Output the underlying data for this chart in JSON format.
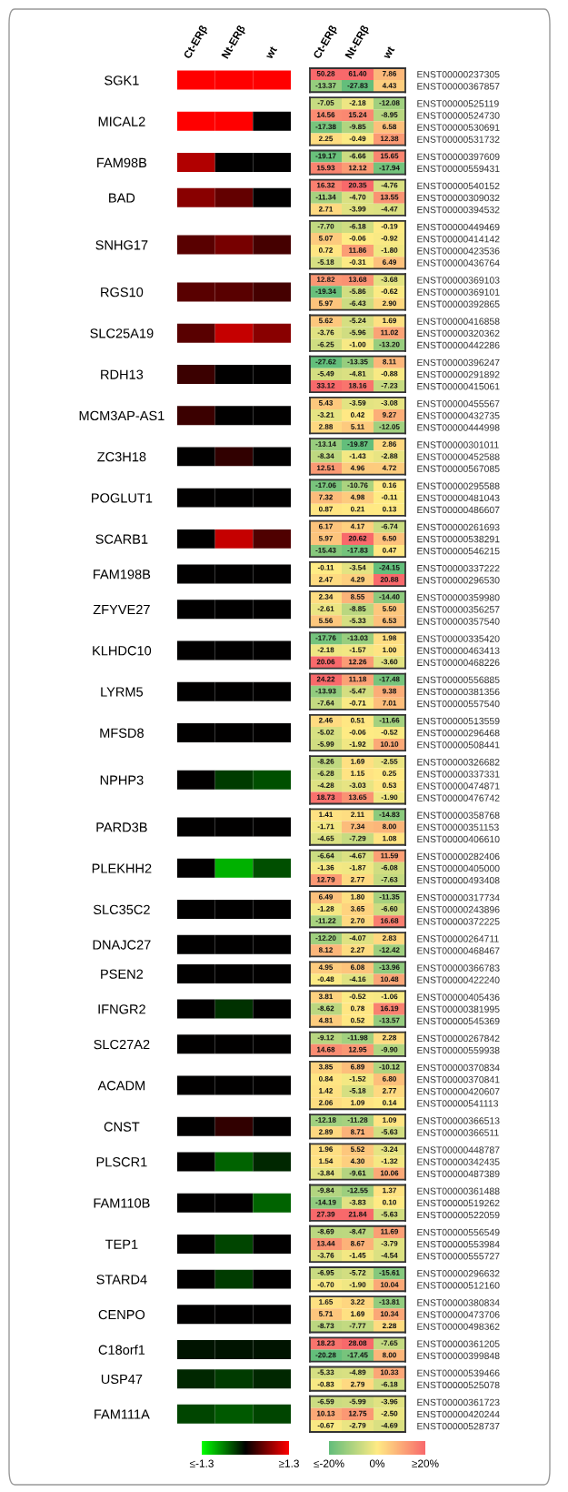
{
  "chart_data": [
    {
      "type": "heatmap",
      "categories": [
        "Ct-ERβ",
        "Nt-ERβ",
        "wt"
      ],
      "y_categories": [
        "SGK1",
        "MICAL2",
        "FAM98B",
        "BAD",
        "SNHG17",
        "RGS10",
        "SLC25A19",
        "RDH13",
        "MCM3AP-AS1",
        "ZC3H18",
        "POGLUT1",
        "SCARB1",
        "FAM198B",
        "ZFYVE27",
        "KLHDC10",
        "LYRM5",
        "MFSD8",
        "NPHP3",
        "PARD3B",
        "PLEKHH2",
        "SLC35C2",
        "DNAJC27",
        "PSEN2",
        "IFNGR2",
        "SLC27A2",
        "ACADM",
        "CNST",
        "PLSCR1",
        "FAM110B",
        "TEP1",
        "STARD4",
        "CENPO",
        "C18orf1",
        "USP47",
        "FAM111A"
      ],
      "cells": [
        [
          1.3,
          1.3,
          1.3
        ],
        [
          1.3,
          1.3,
          0
        ],
        [
          0.9,
          0,
          0
        ],
        [
          0.7,
          0.5,
          0
        ],
        [
          0.45,
          0.6,
          0.35
        ],
        [
          0.45,
          0.45,
          0.35
        ],
        [
          0.45,
          1.0,
          0.7
        ],
        [
          0.3,
          0,
          0
        ],
        [
          0.3,
          0,
          0
        ],
        [
          0,
          0.25,
          0
        ],
        [
          0,
          0,
          0
        ],
        [
          0,
          1.0,
          0.4
        ],
        [
          0,
          0,
          0
        ],
        [
          0,
          0,
          0
        ],
        [
          0,
          0,
          0
        ],
        [
          0,
          0,
          0
        ],
        [
          0,
          0,
          0
        ],
        [
          0,
          -0.3,
          -0.4
        ],
        [
          0,
          0,
          0
        ],
        [
          0,
          -0.9,
          -0.4
        ],
        [
          0,
          0,
          0
        ],
        [
          0,
          0,
          0
        ],
        [
          0,
          0,
          0
        ],
        [
          0,
          -0.25,
          0
        ],
        [
          0,
          0,
          0
        ],
        [
          0,
          0,
          0
        ],
        [
          0,
          0.25,
          0
        ],
        [
          0,
          -0.5,
          -0.2
        ],
        [
          0,
          0,
          -0.5
        ],
        [
          0,
          -0.35,
          0
        ],
        [
          0,
          -0.3,
          0
        ],
        [
          0,
          0,
          0
        ],
        [
          -0.1,
          -0.1,
          -0.1
        ],
        [
          -0.2,
          -0.3,
          -0.2
        ],
        [
          -0.35,
          -0.45,
          -0.35
        ]
      ],
      "colors": [
        "#00ff00",
        "#000000",
        "#ff0000"
      ],
      "clim": [
        -1.3,
        1.3
      ],
      "cticks": [
        {
          "value": -1.3,
          "label": "≤-1.3"
        },
        {
          "value": 1.3,
          "label": "≥1.3"
        }
      ]
    },
    {
      "type": "heatmap",
      "categories": [
        "Ct-ERβ",
        "Nt-ERβ",
        "wt"
      ],
      "data_labels": true,
      "colors": [
        "#63be7b",
        "#ffeb84",
        "#f8696b"
      ],
      "cell_labels": [
        [
          "50.28",
          "61.40",
          "7.86"
        ],
        [
          "-13.37",
          "-27.83",
          "4.43"
        ]
      ],
      "y_categories": [
        "ENST00000237305",
        "ENST00000367857"
      ],
      "cells": [
        [
          50.28,
          61.4,
          7.86
        ],
        [
          -13.37,
          -27.83,
          4.43
        ]
      ]
    },
    {
      "type": "heatmap",
      "categories": [
        null,
        null,
        null
      ],
      "data_labels": true,
      "colors": [
        "#63be7b",
        "#ffeb84",
        "#f8696b"
      ],
      "y_categories": [
        "ENST00000525119",
        "ENST00000524730",
        "ENST00000530691",
        "ENST00000531732"
      ],
      "cells": [
        [
          -7.05,
          -2.18,
          -12.08
        ],
        [
          14.56,
          15.24,
          -8.95
        ],
        [
          -17.38,
          -9.85,
          6.58
        ],
        [
          2.25,
          -0.49,
          12.38
        ]
      ]
    },
    {
      "type": "heatmap",
      "categories": [
        null,
        null,
        null
      ],
      "data_labels": true,
      "colors": [
        "#63be7b",
        "#ffeb84",
        "#f8696b"
      ],
      "y_categories": [
        "ENST00000397609",
        "ENST00000559431"
      ],
      "cells": [
        [
          -19.17,
          -6.66,
          15.65
        ],
        [
          15.93,
          12.12,
          -17.94
        ]
      ]
    },
    {
      "type": "heatmap",
      "categories": [
        null,
        null,
        null
      ],
      "data_labels": true,
      "colors": [
        "#63be7b",
        "#ffeb84",
        "#f8696b"
      ],
      "cell_labels": [
        [
          "16.32",
          "20.35",
          "-4.76"
        ],
        [
          "-11.34",
          "-4.70",
          "13.55"
        ],
        [
          "2.71",
          "-3.99",
          "-4.47"
        ]
      ],
      "y_categories": [
        "ENST00000540152",
        "ENST00000309032",
        "ENST00000394532"
      ],
      "cells": [
        [
          16.32,
          20.35,
          -4.76
        ],
        [
          -11.34,
          -4.7,
          13.55
        ],
        [
          2.71,
          -3.99,
          -4.47
        ]
      ]
    },
    {
      "type": "heatmap",
      "categories": [
        null,
        null,
        null
      ],
      "data_labels": true,
      "colors": [
        "#63be7b",
        "#ffeb84",
        "#f8696b"
      ],
      "cell_labels": [
        [
          "-7.70",
          "-6.18",
          "-0.19"
        ],
        [
          "5.07",
          "-0.06",
          "-0.92"
        ],
        [
          "0.72",
          "11.86",
          "-1.80"
        ],
        [
          "-5.18",
          "-0.31",
          "6.49"
        ]
      ],
      "y_categories": [
        "ENST00000449469",
        "ENST00000414142",
        "ENST00000423536",
        "ENST00000436764"
      ],
      "cells": [
        [
          -7.7,
          -6.18,
          -0.19
        ],
        [
          5.07,
          -0.06,
          -0.92
        ],
        [
          0.72,
          11.86,
          -1.8
        ],
        [
          -5.18,
          -0.31,
          6.49
        ]
      ]
    },
    {
      "type": "heatmap",
      "categories": [
        null,
        null,
        null
      ],
      "data_labels": true,
      "colors": [
        "#63be7b",
        "#ffeb84",
        "#f8696b"
      ],
      "cell_labels": [
        [
          "12.82",
          "13.68",
          "-3.68"
        ],
        [
          "-19.34",
          "-5.86",
          "-0.62"
        ],
        [
          "5.97",
          "-6.43",
          "2.90"
        ]
      ],
      "y_categories": [
        "ENST00000369103",
        "ENST00000369101",
        "ENST00000392865"
      ],
      "cells": [
        [
          12.82,
          13.68,
          -3.68
        ],
        [
          -19.34,
          -5.86,
          -0.62
        ],
        [
          5.97,
          -6.43,
          2.9
        ]
      ]
    },
    {
      "type": "heatmap",
      "categories": [
        null,
        null,
        null
      ],
      "data_labels": true,
      "colors": [
        "#63be7b",
        "#ffeb84",
        "#f8696b"
      ],
      "cell_labels": [
        [
          "5.62",
          "-5.24",
          "1.69"
        ],
        [
          "-3.76",
          "-5.96",
          "11.02"
        ],
        [
          "-6.25",
          "-1.00",
          "-13.20"
        ]
      ],
      "y_categories": [
        "ENST00000416858",
        "ENST00000320362",
        "ENST00000442286"
      ],
      "cells": [
        [
          5.62,
          -5.24,
          1.69
        ],
        [
          -3.76,
          -5.96,
          11.02
        ],
        [
          -6.25,
          -1.0,
          -13.2
        ]
      ]
    },
    {
      "type": "heatmap",
      "categories": [
        null,
        null,
        null
      ],
      "data_labels": true,
      "colors": [
        "#63be7b",
        "#ffeb84",
        "#f8696b"
      ],
      "y_categories": [
        "ENST00000396247",
        "ENST00000291892",
        "ENST00000415061"
      ],
      "cells": [
        [
          -27.62,
          -13.35,
          8.11
        ],
        [
          -5.49,
          -4.81,
          -0.88
        ],
        [
          33.12,
          18.16,
          -7.23
        ]
      ]
    },
    {
      "type": "heatmap",
      "categories": [
        null,
        null,
        null
      ],
      "data_labels": true,
      "colors": [
        "#63be7b",
        "#ffeb84",
        "#f8696b"
      ],
      "y_categories": [
        "ENST00000455567",
        "ENST00000432735",
        "ENST00000444998"
      ],
      "cells": [
        [
          5.43,
          -3.59,
          -3.08
        ],
        [
          -3.21,
          0.42,
          9.27
        ],
        [
          2.88,
          5.11,
          -12.05
        ]
      ]
    },
    {
      "type": "heatmap",
      "categories": [
        null,
        null,
        null
      ],
      "data_labels": true,
      "colors": [
        "#63be7b",
        "#ffeb84",
        "#f8696b"
      ],
      "y_categories": [
        "ENST00000301011",
        "ENST00000452588",
        "ENST00000567085"
      ],
      "cells": [
        [
          -13.14,
          -19.87,
          2.86
        ],
        [
          -8.34,
          -1.43,
          -2.88
        ],
        [
          12.51,
          4.96,
          4.72
        ]
      ]
    },
    {
      "type": "heatmap",
      "categories": [
        null,
        null,
        null
      ],
      "data_labels": true,
      "colors": [
        "#63be7b",
        "#ffeb84",
        "#f8696b"
      ],
      "y_categories": [
        "ENST00000295588",
        "ENST00000481043",
        "ENST00000486607"
      ],
      "cells": [
        [
          -17.06,
          -10.76,
          0.16
        ],
        [
          7.32,
          4.98,
          -0.11
        ],
        [
          0.87,
          0.21,
          0.13
        ]
      ]
    },
    {
      "type": "heatmap",
      "categories": [
        null,
        null,
        null
      ],
      "data_labels": true,
      "colors": [
        "#63be7b",
        "#ffeb84",
        "#f8696b"
      ],
      "cell_labels": [
        [
          "6.17",
          "4.17",
          "-6.74"
        ],
        [
          "5.97",
          "20.62",
          "6.50"
        ],
        [
          "-15.43",
          "-17.83",
          "0.47"
        ]
      ],
      "y_categories": [
        "ENST00000261693",
        "ENST00000538291",
        "ENST00000546215"
      ],
      "cells": [
        [
          6.17,
          4.17,
          -6.74
        ],
        [
          5.97,
          20.62,
          6.5
        ],
        [
          -15.43,
          -17.83,
          0.47
        ]
      ]
    },
    {
      "type": "heatmap",
      "categories": [
        null,
        null,
        null
      ],
      "data_labels": true,
      "colors": [
        "#63be7b",
        "#ffeb84",
        "#f8696b"
      ],
      "y_categories": [
        "ENST00000337222",
        "ENST00000296530"
      ],
      "cells": [
        [
          -0.11,
          -3.54,
          -24.15
        ],
        [
          2.47,
          4.29,
          20.88
        ]
      ]
    },
    {
      "type": "heatmap",
      "categories": [
        null,
        null,
        null
      ],
      "data_labels": true,
      "colors": [
        "#63be7b",
        "#ffeb84",
        "#f8696b"
      ],
      "cell_labels": [
        [
          "2.34",
          "8.55",
          "-14.40"
        ],
        [
          "-2.61",
          "-8.85",
          "5.50"
        ],
        [
          "5.56",
          "-5.33",
          "6.53"
        ]
      ],
      "y_categories": [
        "ENST00000359980",
        "ENST00000356257",
        "ENST00000357540"
      ],
      "cells": [
        [
          2.34,
          8.55,
          -14.4
        ],
        [
          -2.61,
          -8.85,
          5.5
        ],
        [
          5.56,
          -5.33,
          6.53
        ]
      ]
    },
    {
      "type": "heatmap",
      "categories": [
        null,
        null,
        null
      ],
      "data_labels": true,
      "colors": [
        "#63be7b",
        "#ffeb84",
        "#f8696b"
      ],
      "cell_labels": [
        [
          "-17.76",
          "-13.03",
          "1.98"
        ],
        [
          "-2.18",
          "-1.57",
          "1.00"
        ],
        [
          "20.06",
          "12.26",
          "-3.60"
        ]
      ],
      "y_categories": [
        "ENST00000335420",
        "ENST00000463413",
        "ENST00000468226"
      ],
      "cells": [
        [
          -17.76,
          -13.03,
          1.98
        ],
        [
          -2.18,
          -1.57,
          1.0
        ],
        [
          20.06,
          12.26,
          -3.6
        ]
      ]
    },
    {
      "type": "heatmap",
      "categories": [
        null,
        null,
        null
      ],
      "data_labels": true,
      "colors": [
        "#63be7b",
        "#ffeb84",
        "#f8696b"
      ],
      "y_categories": [
        "ENST00000556885",
        "ENST00000381356",
        "ENST00000557540"
      ],
      "cells": [
        [
          24.22,
          11.18,
          -17.48
        ],
        [
          -13.93,
          -5.47,
          9.38
        ],
        [
          -7.64,
          -0.71,
          7.01
        ]
      ]
    },
    {
      "type": "heatmap",
      "categories": [
        null,
        null,
        null
      ],
      "data_labels": true,
      "colors": [
        "#63be7b",
        "#ffeb84",
        "#f8696b"
      ],
      "cell_labels": [
        [
          "2.46",
          "0.51",
          "-11.66"
        ],
        [
          "-5.02",
          "-0.06",
          "-0.52"
        ],
        [
          "-5.99",
          "-1.92",
          "10.10"
        ]
      ],
      "y_categories": [
        "ENST00000513559",
        "ENST00000296468",
        "ENST00000508441"
      ],
      "cells": [
        [
          2.46,
          0.51,
          -11.66
        ],
        [
          -5.02,
          -0.06,
          -0.52
        ],
        [
          -5.99,
          -1.92,
          10.1
        ]
      ]
    },
    {
      "type": "heatmap",
      "categories": [
        null,
        null,
        null
      ],
      "data_labels": true,
      "colors": [
        "#63be7b",
        "#ffeb84",
        "#f8696b"
      ],
      "cell_labels": [
        [
          "-8.26",
          "1.69",
          "-2.55"
        ],
        [
          "-6.28",
          "1.15",
          "0.25"
        ],
        [
          "-4.28",
          "-3.03",
          "0.53"
        ],
        [
          "18.73",
          "13.65",
          "-1.90"
        ]
      ],
      "y_categories": [
        "ENST00000326682",
        "ENST00000337331",
        "ENST00000474871",
        "ENST00000476742"
      ],
      "cells": [
        [
          -8.26,
          1.69,
          -2.55
        ],
        [
          -6.28,
          1.15,
          0.25
        ],
        [
          -4.28,
          -3.03,
          0.53
        ],
        [
          18.73,
          13.65,
          -1.9
        ]
      ]
    },
    {
      "type": "heatmap",
      "categories": [
        null,
        null,
        null
      ],
      "data_labels": true,
      "colors": [
        "#63be7b",
        "#ffeb84",
        "#f8696b"
      ],
      "cell_labels": [
        [
          "1.41",
          "2.11",
          "-14.83"
        ],
        [
          "-1.71",
          "7.34",
          "8.00"
        ],
        [
          "-4.65",
          "-7.29",
          "1.08"
        ]
      ],
      "y_categories": [
        "ENST00000358768",
        "ENST00000351153",
        "ENST00000406610"
      ],
      "cells": [
        [
          1.41,
          2.11,
          -14.83
        ],
        [
          -1.71,
          7.34,
          8.0
        ],
        [
          -4.65,
          -7.29,
          1.08
        ]
      ]
    },
    {
      "type": "heatmap",
      "categories": [
        null,
        null,
        null
      ],
      "data_labels": true,
      "colors": [
        "#63be7b",
        "#ffeb84",
        "#f8696b"
      ],
      "y_categories": [
        "ENST00000282406",
        "ENST00000405000",
        "ENST00000493408"
      ],
      "cells": [
        [
          -6.64,
          -4.67,
          11.59
        ],
        [
          -1.36,
          -1.87,
          -6.08
        ],
        [
          12.79,
          2.77,
          -7.63
        ]
      ]
    },
    {
      "type": "heatmap",
      "categories": [
        null,
        null,
        null
      ],
      "data_labels": true,
      "colors": [
        "#63be7b",
        "#ffeb84",
        "#f8696b"
      ],
      "cell_labels": [
        [
          "6.49",
          "1.80",
          "-11.35"
        ],
        [
          "-1.28",
          "3.65",
          "-6.60"
        ],
        [
          "-11.22",
          "2.70",
          "16.68"
        ]
      ],
      "y_categories": [
        "ENST00000317734",
        "ENST00000243896",
        "ENST00000372225"
      ],
      "cells": [
        [
          6.49,
          1.8,
          -11.35
        ],
        [
          -1.28,
          3.65,
          -6.6
        ],
        [
          -11.22,
          2.7,
          16.68
        ]
      ]
    },
    {
      "type": "heatmap",
      "categories": [
        null,
        null,
        null
      ],
      "data_labels": true,
      "colors": [
        "#63be7b",
        "#ffeb84",
        "#f8696b"
      ],
      "cell_labels": [
        [
          "-12.20",
          "-4.07",
          "2.83"
        ],
        [
          "8.12",
          "2.27",
          "-12.42"
        ]
      ],
      "y_categories": [
        "ENST00000264711",
        "ENST00000468467"
      ],
      "cells": [
        [
          -12.2,
          -4.07,
          2.83
        ],
        [
          8.12,
          2.27,
          -12.42
        ]
      ]
    },
    {
      "type": "heatmap",
      "categories": [
        null,
        null,
        null
      ],
      "data_labels": true,
      "colors": [
        "#63be7b",
        "#ffeb84",
        "#f8696b"
      ],
      "y_categories": [
        "ENST00000366783",
        "ENST00000422240"
      ],
      "cells": [
        [
          4.95,
          6.08,
          -13.96
        ],
        [
          -0.48,
          -4.16,
          10.48
        ]
      ]
    },
    {
      "type": "heatmap",
      "categories": [
        null,
        null,
        null
      ],
      "data_labels": true,
      "colors": [
        "#63be7b",
        "#ffeb84",
        "#f8696b"
      ],
      "y_categories": [
        "ENST00000405436",
        "ENST00000381995",
        "ENST00000545369"
      ],
      "cells": [
        [
          3.81,
          -0.52,
          -1.06
        ],
        [
          -8.62,
          0.78,
          16.19
        ],
        [
          4.81,
          0.52,
          -13.57
        ]
      ]
    },
    {
      "type": "heatmap",
      "categories": [
        null,
        null,
        null
      ],
      "data_labels": true,
      "colors": [
        "#63be7b",
        "#ffeb84",
        "#f8696b"
      ],
      "cell_labels": [
        [
          "-9.12",
          "-11.98",
          "2.28"
        ],
        [
          "14.68",
          "12.95",
          "-9.90"
        ]
      ],
      "y_categories": [
        "ENST00000267842",
        "ENST00000559938"
      ],
      "cells": [
        [
          -9.12,
          -11.98,
          2.28
        ],
        [
          14.68,
          12.95,
          -9.9
        ]
      ]
    },
    {
      "type": "heatmap",
      "categories": [
        null,
        null,
        null
      ],
      "data_labels": true,
      "colors": [
        "#63be7b",
        "#ffeb84",
        "#f8696b"
      ],
      "cell_labels": [
        [
          "3.85",
          "6.89",
          "-10.12"
        ],
        [
          "0.84",
          "-1.52",
          "6.80"
        ],
        [
          "1.42",
          "-5.18",
          "2.77"
        ],
        [
          "2.06",
          "1.09",
          "0.14"
        ]
      ],
      "y_categories": [
        "ENST00000370834",
        "ENST00000370841",
        "ENST00000420607",
        "ENST00000541113"
      ],
      "cells": [
        [
          3.85,
          6.89,
          -10.12
        ],
        [
          0.84,
          -1.52,
          6.8
        ],
        [
          1.42,
          -5.18,
          2.77
        ],
        [
          2.06,
          1.09,
          0.14
        ]
      ]
    },
    {
      "type": "heatmap",
      "categories": [
        null,
        null,
        null
      ],
      "data_labels": true,
      "colors": [
        "#63be7b",
        "#ffeb84",
        "#f8696b"
      ],
      "y_categories": [
        "ENST00000366513",
        "ENST00000366511"
      ],
      "cells": [
        [
          -12.18,
          -11.28,
          1.09
        ],
        [
          2.89,
          8.71,
          -5.63
        ]
      ]
    },
    {
      "type": "heatmap",
      "categories": [
        null,
        null,
        null
      ],
      "data_labels": true,
      "colors": [
        "#63be7b",
        "#ffeb84",
        "#f8696b"
      ],
      "cell_labels": [
        [
          "1.96",
          "5.52",
          "-3.24"
        ],
        [
          "1.54",
          "4.30",
          "-1.32"
        ],
        [
          "-3.84",
          "-9.61",
          "10.06"
        ]
      ],
      "y_categories": [
        "ENST00000448787",
        "ENST00000342435",
        "ENST00000487389"
      ],
      "cells": [
        [
          1.96,
          5.52,
          -3.24
        ],
        [
          1.54,
          4.3,
          -1.32
        ],
        [
          -3.84,
          -9.61,
          10.06
        ]
      ]
    },
    {
      "type": "heatmap",
      "categories": [
        null,
        null,
        null
      ],
      "data_labels": true,
      "colors": [
        "#63be7b",
        "#ffeb84",
        "#f8696b"
      ],
      "cell_labels": [
        [
          "-9.84",
          "-12.55",
          "1.37"
        ],
        [
          "-14.19",
          "-3.83",
          "0.10"
        ],
        [
          "27.39",
          "21.84",
          "-5.63"
        ]
      ],
      "y_categories": [
        "ENST00000361488",
        "ENST00000519262",
        "ENST00000522059"
      ],
      "cells": [
        [
          -9.84,
          -12.55,
          1.37
        ],
        [
          -14.19,
          -3.83,
          0.1
        ],
        [
          27.39,
          21.84,
          -5.63
        ]
      ]
    },
    {
      "type": "heatmap",
      "categories": [
        null,
        null,
        null
      ],
      "data_labels": true,
      "colors": [
        "#63be7b",
        "#ffeb84",
        "#f8696b"
      ],
      "y_categories": [
        "ENST00000556549",
        "ENST00000553984",
        "ENST00000555727"
      ],
      "cells": [
        [
          -8.69,
          -8.47,
          11.69
        ],
        [
          13.44,
          8.67,
          -3.79
        ],
        [
          -3.76,
          -1.45,
          -4.54
        ]
      ]
    },
    {
      "type": "heatmap",
      "categories": [
        null,
        null,
        null
      ],
      "data_labels": true,
      "colors": [
        "#63be7b",
        "#ffeb84",
        "#f8696b"
      ],
      "cell_labels": [
        [
          "-6.95",
          "-5.72",
          "-15.61"
        ],
        [
          "-0.70",
          "-1.90",
          "10.04"
        ]
      ],
      "y_categories": [
        "ENST00000296632",
        "ENST00000512160"
      ],
      "cells": [
        [
          -6.95,
          -5.72,
          -15.61
        ],
        [
          -0.7,
          -1.9,
          10.04
        ]
      ]
    },
    {
      "type": "heatmap",
      "categories": [
        null,
        null,
        null
      ],
      "data_labels": true,
      "colors": [
        "#63be7b",
        "#ffeb84",
        "#f8696b"
      ],
      "y_categories": [
        "ENST00000380834",
        "ENST00000473706",
        "ENST00000498362"
      ],
      "cells": [
        [
          1.65,
          3.22,
          -13.81
        ],
        [
          5.71,
          1.69,
          10.34
        ],
        [
          -8.73,
          -7.77,
          2.28
        ]
      ]
    },
    {
      "type": "heatmap",
      "categories": [
        null,
        null,
        null
      ],
      "data_labels": true,
      "colors": [
        "#63be7b",
        "#ffeb84",
        "#f8696b"
      ],
      "cell_labels": [
        [
          "18.23",
          "28.08",
          "-7.65"
        ],
        [
          "-20.28",
          "-17.45",
          "8.00"
        ]
      ],
      "y_categories": [
        "ENST00000361205",
        "ENST00000399848"
      ],
      "cells": [
        [
          18.23,
          28.08,
          -7.65
        ],
        [
          -20.28,
          -17.45,
          8.0
        ]
      ]
    },
    {
      "type": "heatmap",
      "categories": [
        null,
        null,
        null
      ],
      "data_labels": true,
      "colors": [
        "#63be7b",
        "#ffeb84",
        "#f8696b"
      ],
      "y_categories": [
        "ENST00000539466",
        "ENST00000525078"
      ],
      "cells": [
        [
          -5.33,
          -4.89,
          10.33
        ],
        [
          -0.83,
          2.79,
          -6.18
        ]
      ]
    },
    {
      "type": "heatmap",
      "categories": [
        null,
        null,
        null
      ],
      "data_labels": true,
      "colors": [
        "#63be7b",
        "#ffeb84",
        "#f8696b"
      ],
      "cell_labels": [
        [
          "-6.59",
          "-5.99",
          "-3.96"
        ],
        [
          "10.13",
          "12.75",
          "-2.50"
        ],
        [
          "-0.67",
          "-2.79",
          "-4.69"
        ]
      ],
      "y_categories": [
        "ENST00000361723",
        "ENST00000420244",
        "ENST00000528737"
      ],
      "cells": [
        [
          -6.59,
          -5.99,
          -3.96
        ],
        [
          10.13,
          12.75,
          -2.5
        ],
        [
          -0.67,
          -2.79,
          -4.69
        ]
      ],
      "clim": [
        -20,
        20
      ],
      "cticks": [
        {
          "value": -20,
          "label": "≤-20%"
        },
        {
          "value": 0,
          "label": "0%"
        },
        {
          "value": 20,
          "label": "≥20%"
        }
      ]
    }
  ]
}
